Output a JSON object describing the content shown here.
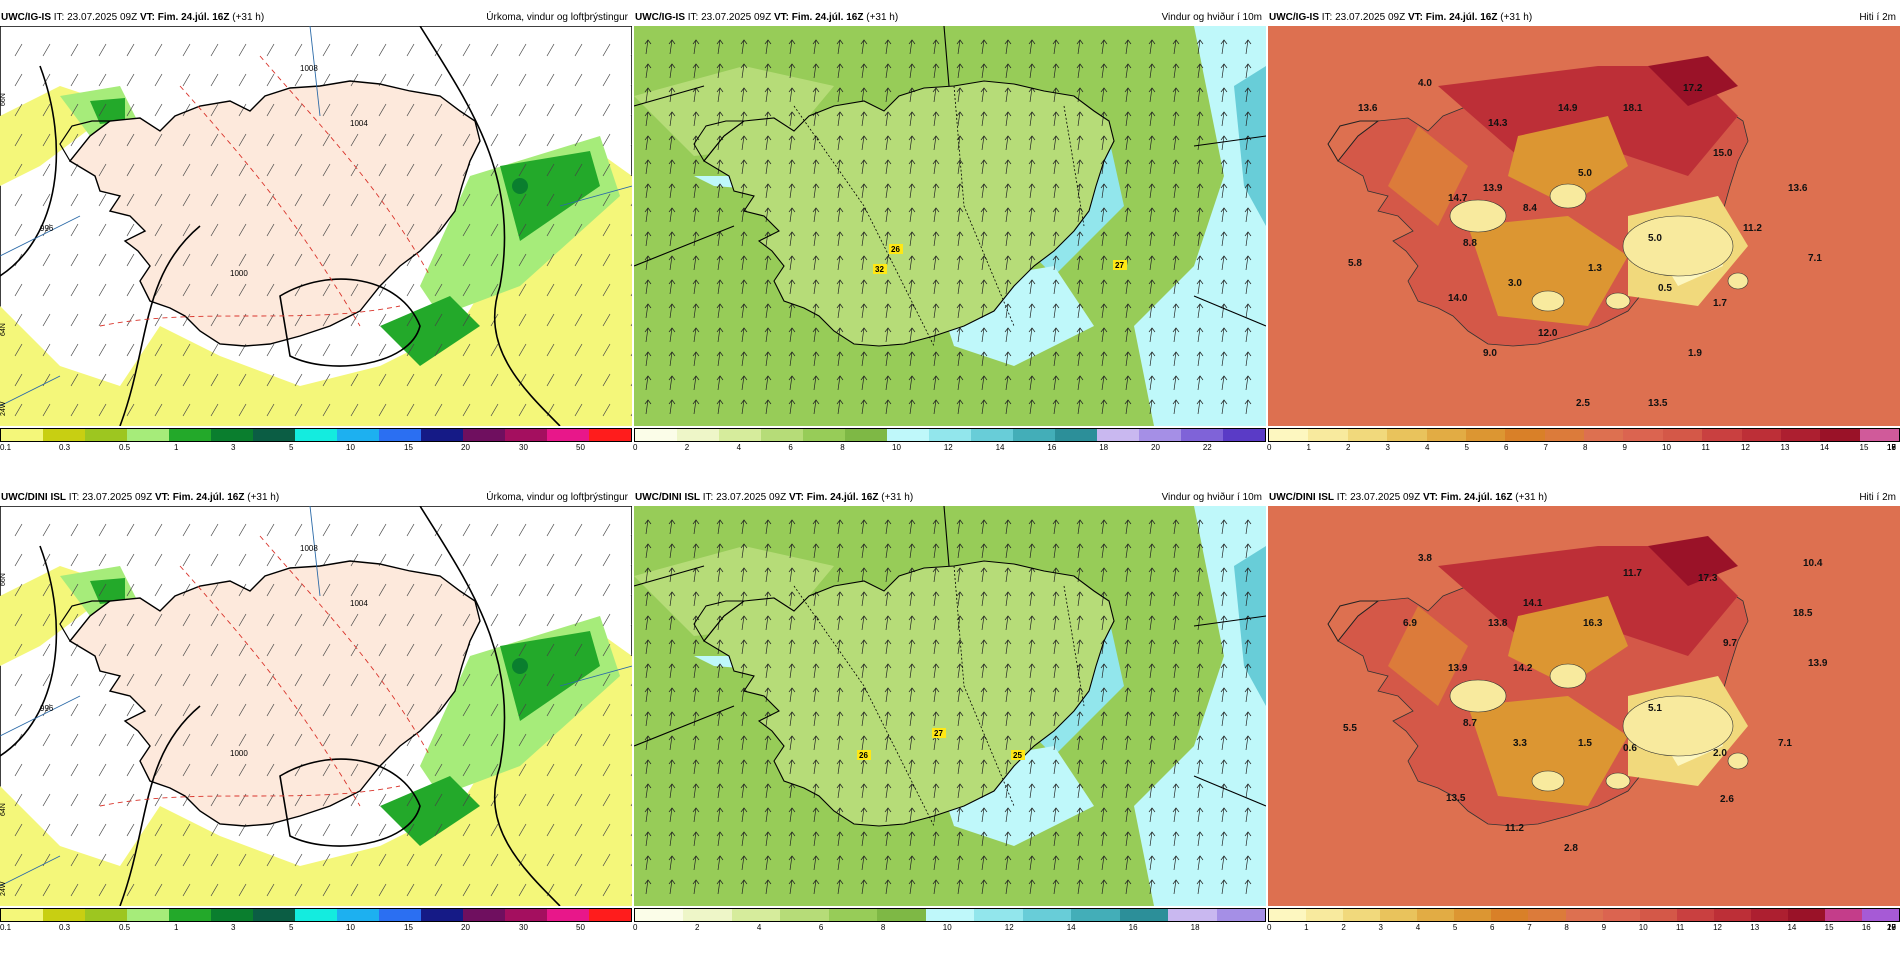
{
  "panels": [
    {
      "model": "UWC/IG-IS",
      "issue_label": "IT:",
      "issue": "23.07.2025 09Z",
      "valid_label": "VT:",
      "valid": "Fim. 24.júl. 16Z",
      "lead": "(+31 h)",
      "title": "Úrkoma, vindur og loftþrýstingur",
      "colors": [
        "#f4f77a",
        "#c8cf12",
        "#9dc620",
        "#a6ec7a",
        "#23a92a",
        "#0a7e2e",
        "#0b5d44",
        "#14ecdf",
        "#1db0f0",
        "#2b6ff2",
        "#151a86",
        "#6f0f5f",
        "#a40f5f",
        "#e8178a",
        "#ff1c1c"
      ],
      "ticks": [
        "0.1",
        "0.3",
        "0.5",
        "1",
        "3",
        "5",
        "10",
        "15",
        "20",
        "30",
        "50"
      ]
    },
    {
      "model": "UWC/IG-IS",
      "issue_label": "IT:",
      "issue": "23.07.2025 09Z",
      "valid_label": "VT:",
      "valid": "Fim. 24.júl. 16Z",
      "lead": "(+31 h)",
      "title": "Vindur og hviður í 10m",
      "colors": [
        "#fbfde8",
        "#eef6c8",
        "#d6ec9c",
        "#b6dc78",
        "#97cc58",
        "#7eb845",
        "#bff8fa",
        "#92e6ec",
        "#68cdd8",
        "#43aeb8",
        "#2c8f99",
        "#c9b8f0",
        "#a58fe6",
        "#7f63d8",
        "#5a3bc6"
      ],
      "ticks": [
        "0",
        "2",
        "4",
        "6",
        "8",
        "10",
        "12",
        "14",
        "16",
        "18",
        "20",
        "22"
      ],
      "wind_labels": [
        "26",
        "32",
        "27"
      ]
    },
    {
      "model": "UWC/IG-IS",
      "issue_label": "IT:",
      "issue": "23.07.2025 09Z",
      "valid_label": "VT:",
      "valid": "Fim. 24.júl. 16Z",
      "lead": "(+31 h)",
      "title": "Hiti í 2m",
      "colors": [
        "#fdf7c0",
        "#f8ea9e",
        "#f1d97c",
        "#e9c35c",
        "#e2ac44",
        "#dc9632",
        "#d98028",
        "#dc7b3a",
        "#dd7050",
        "#db6450",
        "#d45848",
        "#c94040",
        "#bd2f37",
        "#ad1f30",
        "#9a1228",
        "#d05a9a"
      ],
      "ticks": [
        "0",
        "1",
        "2",
        "3",
        "4",
        "5",
        "6",
        "7",
        "8",
        "9",
        "10",
        "11",
        "12",
        "13",
        "14",
        "15",
        "16",
        "17",
        "18",
        "19"
      ],
      "temps": [
        "4.0",
        "13.6",
        "14.3",
        "14.9",
        "18.1",
        "17.2",
        "15.0",
        "13.6",
        "13.9",
        "14.7",
        "8.8",
        "8.4",
        "5.0",
        "5.0",
        "11.2",
        "7.1",
        "5.8",
        "3.0",
        "1.3",
        "0.5",
        "1.7",
        "14.0",
        "12.0",
        "9.0",
        "1.9",
        "2.5",
        "13.5"
      ]
    },
    {
      "model": "UWC/DINI ISL",
      "issue_label": "IT:",
      "issue": "23.07.2025 09Z",
      "valid_label": "VT:",
      "valid": "Fim. 24.júl. 16Z",
      "lead": "(+31 h)",
      "title": "Úrkoma, vindur og loftþrýstingur",
      "colors": [
        "#f4f77a",
        "#c8cf12",
        "#9dc620",
        "#a6ec7a",
        "#23a92a",
        "#0a7e2e",
        "#0b5d44",
        "#14ecdf",
        "#1db0f0",
        "#2b6ff2",
        "#151a86",
        "#6f0f5f",
        "#a40f5f",
        "#e8178a",
        "#ff1c1c"
      ],
      "ticks": [
        "0.1",
        "0.3",
        "0.5",
        "1",
        "3",
        "5",
        "10",
        "15",
        "20",
        "30",
        "50"
      ]
    },
    {
      "model": "UWC/DINI ISL",
      "issue_label": "IT:",
      "issue": "23.07.2025 09Z",
      "valid_label": "VT:",
      "valid": "Fim. 24.júl. 16Z",
      "lead": "(+31 h)",
      "title": "Vindur og hviður í 10m",
      "colors": [
        "#fbfde8",
        "#eef6c8",
        "#d6ec9c",
        "#b6dc78",
        "#97cc58",
        "#7eb845",
        "#bff8fa",
        "#92e6ec",
        "#68cdd8",
        "#43aeb8",
        "#2c8f99",
        "#c9b8f0",
        "#a58fe6"
      ],
      "ticks": [
        "0",
        "2",
        "4",
        "6",
        "8",
        "10",
        "12",
        "14",
        "16",
        "18"
      ],
      "wind_labels": [
        "27",
        "26",
        "25"
      ]
    },
    {
      "model": "UWC/DINI ISL",
      "issue_label": "IT:",
      "issue": "23.07.2025 09Z",
      "valid_label": "VT:",
      "valid": "Fim. 24.júl. 16Z",
      "lead": "(+31 h)",
      "title": "Hiti í 2m",
      "colors": [
        "#fdf7c0",
        "#f8ea9e",
        "#f1d97c",
        "#e9c35c",
        "#e2ac44",
        "#dc9632",
        "#d98028",
        "#dc7b3a",
        "#dd7050",
        "#db6450",
        "#d45848",
        "#c94040",
        "#bd2f37",
        "#ad1f30",
        "#9a1228",
        "#c43d8a",
        "#a65ad6"
      ],
      "ticks": [
        "0",
        "1",
        "2",
        "3",
        "4",
        "5",
        "6",
        "7",
        "8",
        "9",
        "10",
        "11",
        "12",
        "13",
        "14",
        "15",
        "16",
        "17",
        "18",
        "19",
        "20"
      ],
      "temps": [
        "3.8",
        "10.4",
        "6.9",
        "13.8",
        "14.1",
        "11.7",
        "17.3",
        "18.5",
        "13.9",
        "16.3",
        "14.2",
        "9.7",
        "13.9",
        "5.1",
        "5.5",
        "8.7",
        "3.3",
        "1.5",
        "0.6",
        "2.0",
        "7.1",
        "13.5",
        "11.2",
        "2.6",
        "2.8"
      ]
    }
  ],
  "map_labels": {
    "lat_66": "66N",
    "lat_64": "64N",
    "lon_24": "24W",
    "isobar_1008": "1008",
    "isobar_1004": "1004",
    "isobar_1000": "1000",
    "isobar_996": "996"
  }
}
